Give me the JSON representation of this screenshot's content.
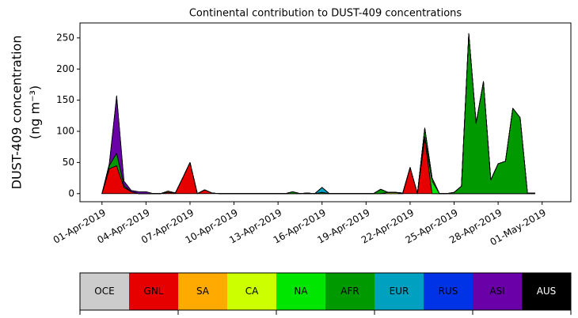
{
  "chart_data": {
    "type": "stackedarea",
    "title": "Continental contribution to DUST-409 concentrations",
    "ylabel": [
      "DUST-409 concentration",
      "(ng m⁻³)"
    ],
    "x": [
      "2019-04-01T00:00",
      "2019-04-01T12:00",
      "2019-04-02T00:00",
      "2019-04-02T12:00",
      "2019-04-03T00:00",
      "2019-04-03T12:00",
      "2019-04-04T00:00",
      "2019-04-04T12:00",
      "2019-04-05T00:00",
      "2019-04-05T12:00",
      "2019-04-06T00:00",
      "2019-04-06T12:00",
      "2019-04-07T00:00",
      "2019-04-07T12:00",
      "2019-04-08T00:00",
      "2019-04-08T12:00",
      "2019-04-09T00:00",
      "2019-04-09T12:00",
      "2019-04-10T00:00",
      "2019-04-10T12:00",
      "2019-04-11T00:00",
      "2019-04-11T12:00",
      "2019-04-12T00:00",
      "2019-04-12T12:00",
      "2019-04-13T00:00",
      "2019-04-13T12:00",
      "2019-04-14T00:00",
      "2019-04-14T12:00",
      "2019-04-15T00:00",
      "2019-04-15T12:00",
      "2019-04-16T00:00",
      "2019-04-16T12:00",
      "2019-04-17T00:00",
      "2019-04-17T12:00",
      "2019-04-18T00:00",
      "2019-04-18T12:00",
      "2019-04-19T00:00",
      "2019-04-19T12:00",
      "2019-04-20T00:00",
      "2019-04-20T12:00",
      "2019-04-21T00:00",
      "2019-04-21T12:00",
      "2019-04-22T00:00",
      "2019-04-22T12:00",
      "2019-04-23T00:00",
      "2019-04-23T12:00",
      "2019-04-24T00:00",
      "2019-04-24T12:00",
      "2019-04-25T00:00",
      "2019-04-25T12:00",
      "2019-04-26T00:00",
      "2019-04-26T12:00",
      "2019-04-27T00:00",
      "2019-04-27T12:00",
      "2019-04-28T00:00",
      "2019-04-28T12:00",
      "2019-04-29T00:00",
      "2019-04-29T12:00",
      "2019-04-30T00:00",
      "2019-04-30T12:00"
    ],
    "series": [
      {
        "name": "OCE",
        "color": "#cccccc",
        "values": [
          0,
          0,
          0,
          0,
          0,
          0,
          0,
          0,
          0,
          0,
          0,
          0,
          0,
          0,
          0,
          0,
          0,
          0,
          0,
          0,
          0,
          0,
          0,
          0,
          0,
          0,
          0,
          0,
          0,
          0,
          0,
          0,
          0,
          0,
          0,
          0,
          0,
          0,
          0,
          0,
          0,
          0,
          0,
          0,
          0,
          0,
          0,
          0,
          0,
          0,
          0,
          0,
          0,
          0,
          0,
          0,
          0,
          0,
          0,
          0
        ]
      },
      {
        "name": "GNL",
        "color": "#e60000",
        "values": [
          0,
          40,
          45,
          10,
          3,
          0,
          0,
          0,
          0,
          2,
          1,
          25,
          50,
          0,
          6,
          1,
          0,
          0,
          0,
          0,
          0,
          0,
          0,
          0,
          0,
          0,
          0,
          0,
          0,
          0,
          0,
          0,
          0,
          0,
          0,
          0,
          0,
          0,
          0,
          0,
          0,
          0,
          42,
          0,
          88,
          0,
          0,
          0,
          0,
          0,
          0,
          0,
          0,
          0,
          0,
          0,
          0,
          0,
          0,
          0
        ]
      },
      {
        "name": "SA",
        "color": "#ffaa00",
        "values": [
          0,
          0,
          0,
          0,
          0,
          0,
          0,
          0,
          0,
          2,
          0,
          0,
          0,
          0,
          0,
          0,
          0,
          0,
          0,
          0,
          0,
          0,
          0,
          0,
          0,
          0,
          0,
          0,
          0,
          0,
          0,
          0,
          0,
          0,
          0,
          0,
          0,
          0,
          0,
          0,
          0,
          0,
          0,
          0,
          3,
          0,
          0,
          0,
          0,
          0,
          0,
          0,
          0,
          0,
          0,
          0,
          0,
          0,
          0,
          0
        ]
      },
      {
        "name": "CA",
        "color": "#ccff00",
        "values": [
          0,
          0,
          0,
          0,
          0,
          0,
          0,
          0,
          0,
          0,
          0,
          0,
          0,
          0,
          0,
          0,
          0,
          0,
          0,
          0,
          0,
          0,
          0,
          0,
          0,
          0,
          0,
          0,
          0,
          0,
          0,
          0,
          0,
          0,
          0,
          0,
          0,
          0,
          0,
          2,
          2,
          0,
          0,
          0,
          0,
          0,
          0,
          0,
          0,
          0,
          0,
          0,
          0,
          0,
          0,
          0,
          0,
          0,
          0,
          0
        ]
      },
      {
        "name": "NA",
        "color": "#00e600",
        "values": [
          0,
          0,
          0,
          0,
          0,
          0,
          0,
          0,
          0,
          0,
          0,
          0,
          0,
          0,
          0,
          0,
          0,
          0,
          0,
          0,
          0,
          0,
          0,
          0,
          0,
          0,
          0,
          0,
          0,
          0,
          0,
          0,
          0,
          0,
          0,
          0,
          0,
          0,
          0,
          0,
          0,
          0,
          0,
          0,
          0,
          20,
          0,
          0,
          0,
          0,
          0,
          0,
          0,
          0,
          0,
          0,
          0,
          0,
          0,
          0
        ]
      },
      {
        "name": "AFR",
        "color": "#009900",
        "values": [
          0,
          5,
          20,
          3,
          0,
          0,
          0,
          0,
          0,
          0,
          0,
          0,
          0,
          0,
          0,
          0,
          0,
          0,
          0,
          0,
          0,
          0,
          0,
          0,
          0,
          0,
          3,
          0,
          1,
          0,
          2,
          0,
          0,
          0,
          0,
          0,
          0,
          0,
          7,
          0,
          0,
          1,
          0,
          0,
          14,
          5,
          0,
          0,
          2,
          12,
          257,
          113,
          180,
          22,
          48,
          52,
          137,
          122,
          1,
          1
        ]
      },
      {
        "name": "EUR",
        "color": "#00a0c0",
        "values": [
          0,
          0,
          0,
          0,
          0,
          0,
          0,
          0,
          0,
          0,
          0,
          0,
          0,
          0,
          0,
          0,
          0,
          0,
          0,
          0,
          0,
          0,
          0,
          0,
          0,
          0,
          0,
          0,
          0,
          0,
          8,
          0,
          0,
          0,
          0,
          0,
          0,
          0,
          0,
          0,
          0,
          0,
          0,
          0,
          0,
          0,
          0,
          0,
          0,
          0,
          0,
          0,
          0,
          0,
          0,
          0,
          0,
          0,
          0,
          0
        ]
      },
      {
        "name": "RUS",
        "color": "#0033e6",
        "values": [
          0,
          0,
          0,
          0,
          0,
          0,
          0,
          0,
          0,
          0,
          0,
          0,
          0,
          0,
          0,
          0,
          0,
          0,
          0,
          0,
          0,
          0,
          0,
          0,
          0,
          0,
          0,
          0,
          0,
          0,
          0,
          0,
          0,
          0,
          0,
          0,
          0,
          0,
          0,
          0,
          0,
          0,
          0,
          0,
          0,
          0,
          0,
          0,
          0,
          0,
          0,
          0,
          0,
          0,
          0,
          0,
          0,
          0,
          0,
          0
        ]
      },
      {
        "name": "ASI",
        "color": "#6a00a8",
        "values": [
          0,
          3,
          92,
          7,
          2,
          3,
          3,
          0,
          0,
          0,
          0,
          0,
          0,
          0,
          0,
          0,
          0,
          0,
          0,
          0,
          0,
          0,
          0,
          0,
          0,
          0,
          0,
          0,
          0,
          0,
          0,
          0,
          0,
          0,
          0,
          0,
          0,
          0,
          0,
          0,
          0,
          0,
          0,
          0,
          0,
          0,
          0,
          0,
          0,
          0,
          0,
          0,
          0,
          0,
          0,
          0,
          0,
          0,
          0,
          0
        ]
      },
      {
        "name": "AUS",
        "color": "#000000",
        "values": [
          0,
          0,
          0,
          0,
          0,
          0,
          0,
          0,
          0,
          0,
          0,
          0,
          0,
          0,
          0,
          0,
          0,
          0,
          0,
          0,
          0,
          0,
          0,
          0,
          0,
          0,
          0,
          0,
          0,
          0,
          0,
          0,
          0,
          0,
          0,
          0,
          0,
          0,
          0,
          0,
          0,
          0,
          0,
          0,
          0,
          0,
          0,
          0,
          0,
          0,
          0,
          0,
          0,
          0,
          0,
          0,
          0,
          0,
          0,
          0
        ]
      }
    ],
    "xlim": [
      "2019-03-30T12:00",
      "2019-05-02T23:00"
    ],
    "xticks": [
      {
        "value": "2019-04-01T00:00",
        "label": "01-Apr-2019"
      },
      {
        "value": "2019-04-04T00:00",
        "label": "04-Apr-2019"
      },
      {
        "value": "2019-04-07T00:00",
        "label": "07-Apr-2019"
      },
      {
        "value": "2019-04-10T00:00",
        "label": "10-Apr-2019"
      },
      {
        "value": "2019-04-13T00:00",
        "label": "13-Apr-2019"
      },
      {
        "value": "2019-04-16T00:00",
        "label": "16-Apr-2019"
      },
      {
        "value": "2019-04-19T00:00",
        "label": "19-Apr-2019"
      },
      {
        "value": "2019-04-22T00:00",
        "label": "22-Apr-2019"
      },
      {
        "value": "2019-04-25T00:00",
        "label": "25-Apr-2019"
      },
      {
        "value": "2019-04-28T00:00",
        "label": "28-Apr-2019"
      },
      {
        "value": "2019-05-01T00:00",
        "label": "01-May-2019"
      }
    ],
    "ylim": [
      -13,
      274
    ],
    "yticks": [
      0,
      50,
      100,
      150,
      200,
      250
    ],
    "grid": false
  }
}
